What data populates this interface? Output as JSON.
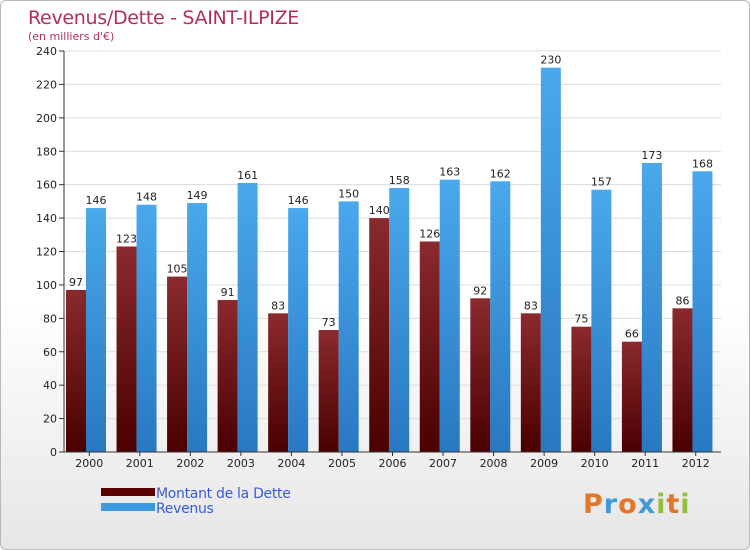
{
  "header": {
    "title": "Revenus/Dette - SAINT-ILPIZE",
    "subtitle": "(en milliers d'€)"
  },
  "chart_data": {
    "type": "bar",
    "categories": [
      "2000",
      "2001",
      "2002",
      "2003",
      "2004",
      "2005",
      "2006",
      "2007",
      "2008",
      "2009",
      "2010",
      "2011",
      "2012"
    ],
    "series": [
      {
        "name": "Montant de la Dette",
        "color": "#7a1418",
        "values": [
          97,
          123,
          105,
          91,
          83,
          73,
          140,
          126,
          92,
          83,
          75,
          66,
          86
        ]
      },
      {
        "name": "Revenus",
        "color": "#3d9ae0",
        "values": [
          146,
          148,
          149,
          161,
          146,
          150,
          158,
          163,
          162,
          230,
          157,
          173,
          168
        ]
      }
    ],
    "ylim": [
      0,
      240
    ],
    "yticks": [
      0,
      20,
      40,
      60,
      80,
      100,
      120,
      140,
      160,
      180,
      200,
      220,
      240
    ],
    "grid": true,
    "legend": "bottom-left"
  },
  "legend": {
    "items": [
      {
        "label": "Montant de la Dette",
        "color": "#5a0000"
      },
      {
        "label": "Revenus",
        "color": "#3d9ae0"
      }
    ]
  },
  "logo": {
    "letters": [
      {
        "ch": "P",
        "color": "#e2762a"
      },
      {
        "ch": "r",
        "color": "#3f9ad6"
      },
      {
        "ch": "o",
        "color": "#e2762a"
      },
      {
        "ch": "x",
        "color": "#3f9ad6"
      },
      {
        "ch": "i",
        "color": "#93bf3c"
      },
      {
        "ch": "t",
        "color": "#e2762a"
      },
      {
        "ch": "i",
        "color": "#93bf3c"
      }
    ]
  }
}
